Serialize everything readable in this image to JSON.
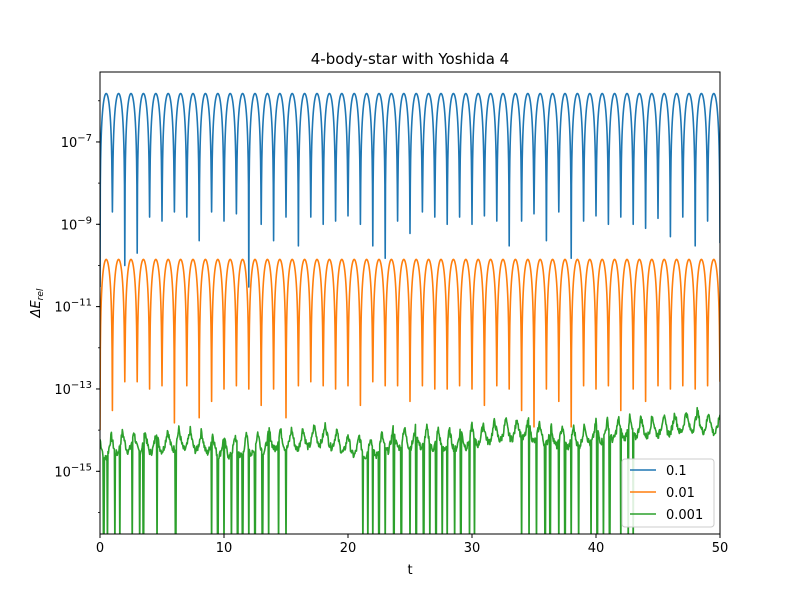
{
  "chart_data": {
    "type": "line",
    "title": "4-body-star with Yoshida 4",
    "xlabel": "t",
    "ylabel_base": "ΔE",
    "ylabel_sub": "rel",
    "x_scale": "linear",
    "y_scale": "log",
    "xlim": [
      0,
      50
    ],
    "ylim": [
      3e-17,
      5e-06
    ],
    "x_ticks": [
      0,
      10,
      20,
      30,
      40,
      50
    ],
    "x_tick_labels": [
      "0",
      "10",
      "20",
      "30",
      "40",
      "50"
    ],
    "y_tick_exponents": [
      -7,
      -9,
      -11,
      -13,
      -15
    ],
    "y_tick_base": "10",
    "grid": false,
    "legend_position": "lower-right",
    "series": [
      {
        "name": "0.1",
        "color": "#1f77b4",
        "oscillation_period": 1.0,
        "peak_value": 1.5e-06,
        "dip_minima": [
          3e-11,
          2e-09,
          1e-10,
          2e-10,
          1.5e-09,
          1.2e-09,
          2e-09,
          1.5e-09,
          4e-10,
          2e-09,
          1.2e-09,
          1.8e-09,
          3e-11,
          1e-09,
          4e-10,
          1.5e-09,
          3e-10,
          1.5e-09,
          1e-09,
          1.2e-09,
          1.6e-09,
          1e-09,
          3e-10,
          1.5e-10,
          1.2e-09,
          6e-10,
          2e-09,
          1.5e-09,
          1e-09,
          1.5e-09,
          1e-09,
          1.6e-09,
          1.2e-09,
          3e-10,
          1.2e-09,
          1.8e-09,
          4e-10,
          2e-09,
          1.5e-10,
          1.2e-09,
          1.6e-09,
          1e-09,
          1.5e-09,
          1e-09,
          8e-10,
          1.4e-09,
          5e-10,
          1.5e-09,
          3e-10,
          1.2e-09,
          3.5e-10
        ]
      },
      {
        "name": "0.01",
        "color": "#ff7f0e",
        "oscillation_period": 1.0,
        "peak_value": 1.4e-10,
        "dip_minima": [
          1e-14,
          3e-14,
          1.5e-13,
          1.5e-13,
          1e-13,
          1.2e-13,
          1.5e-14,
          1.2e-13,
          2e-14,
          5e-14,
          1e-13,
          1.2e-13,
          1e-13,
          4e-14,
          1e-13,
          2e-14,
          1.2e-13,
          1.5e-13,
          1.2e-13,
          1e-13,
          1.2e-13,
          4e-14,
          1.5e-13,
          1.2e-13,
          1.2e-13,
          5e-14,
          1.2e-13,
          1e-13,
          1e-13,
          1.2e-13,
          1e-13,
          4e-14,
          1.2e-13,
          1e-13,
          3e-14,
          1.2e-14,
          1e-13,
          5e-14,
          1.2e-14,
          1.2e-13,
          1e-13,
          1.2e-13,
          3e-14,
          1e-13,
          5e-14,
          1.2e-13,
          1e-13,
          1.2e-13,
          1e-13,
          1.2e-13,
          1.5e-13
        ]
      },
      {
        "name": "0.001",
        "color": "#2ca02c",
        "baseline_value": 8e-15,
        "envelope_points": [
          [
            0,
            6e-15
          ],
          [
            2,
            1e-14
          ],
          [
            4,
            9e-15
          ],
          [
            6,
            1.1e-14
          ],
          [
            8,
            1e-14
          ],
          [
            10,
            7e-15
          ],
          [
            12,
            8e-15
          ],
          [
            14,
            1.1e-14
          ],
          [
            16,
            1.1e-14
          ],
          [
            18,
            1.5e-14
          ],
          [
            20,
            8e-15
          ],
          [
            22,
            7e-15
          ],
          [
            24,
            1.2e-14
          ],
          [
            26,
            1.2e-14
          ],
          [
            28,
            1e-14
          ],
          [
            30,
            1.3e-14
          ],
          [
            32,
            1.8e-14
          ],
          [
            34,
            2e-14
          ],
          [
            36,
            1.4e-14
          ],
          [
            38,
            1.2e-14
          ],
          [
            40,
            1.6e-14
          ],
          [
            42,
            2e-14
          ],
          [
            44,
            2.2e-14
          ],
          [
            46,
            2.6e-14
          ],
          [
            48,
            3.2e-14
          ],
          [
            50,
            2.5e-14
          ]
        ],
        "dropouts_to_bottom": [
          0.3,
          0.6,
          1.2,
          1.6,
          2.6,
          3.2,
          3.5,
          4.6,
          6.1,
          9.0,
          9.5,
          10.0,
          10.6,
          11.1,
          11.5,
          12.0,
          12.5,
          13.1,
          13.6,
          14.4,
          15.0,
          21.2,
          21.6,
          22.0,
          22.5,
          23.0,
          23.7,
          24.3,
          25.0,
          25.5,
          26.1,
          26.6,
          27.1,
          27.6,
          28.0,
          28.6,
          29.1,
          29.8,
          30.2,
          34.0,
          34.6,
          35.2,
          35.9,
          36.3,
          37.0,
          37.5,
          38.0,
          38.6,
          39.6,
          40.1,
          40.6,
          41.1,
          42.0,
          42.6,
          43.0
        ]
      }
    ]
  }
}
